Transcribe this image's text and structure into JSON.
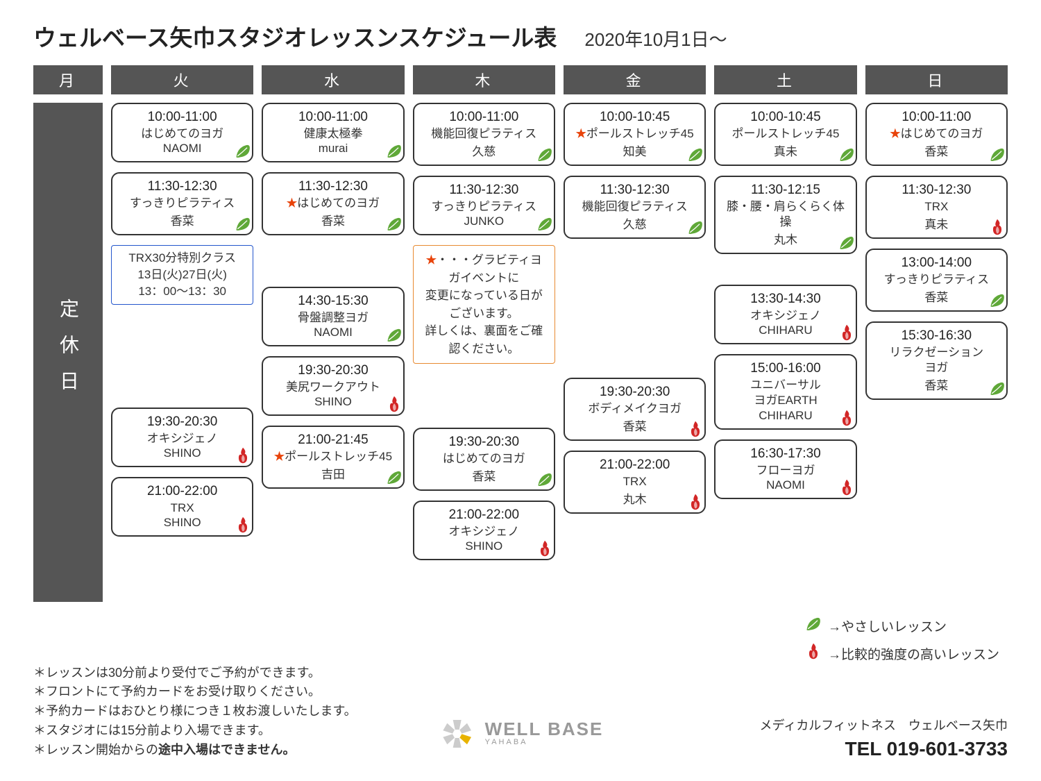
{
  "title": "ウェルベース矢巾スタジオレッスンスケジュール表",
  "date": "2020年10月1日～",
  "days": [
    "月",
    "火",
    "水",
    "木",
    "金",
    "土",
    "日"
  ],
  "closed": "定休日",
  "colors": {
    "header_bg": "#555555",
    "leaf": "#5fa838",
    "flame": "#d22626",
    "star": "#e8430a"
  },
  "tue": [
    {
      "time": "10:00-11:00",
      "name": "はじめてのヨガ",
      "instr": "NAOMI",
      "icon": "leaf"
    },
    {
      "time": "11:30-12:30",
      "name": "すっきりピラティス",
      "instr": "香菜",
      "icon": "leaf"
    },
    {
      "special": "TRX30分特別クラス\n13日(火)27日(火)\n13：00～13：30"
    },
    {
      "spacer": 120
    },
    {
      "time": "19:30-20:30",
      "name": "オキシジェノ",
      "instr": "SHINO",
      "icon": "flame"
    },
    {
      "time": "21:00-22:00",
      "name": "TRX",
      "instr": "SHINO",
      "icon": "flame"
    }
  ],
  "wed": [
    {
      "time": "10:00-11:00",
      "name": "健康太極拳",
      "instr": "murai",
      "icon": "leaf"
    },
    {
      "time": "11:30-12:30",
      "name": "はじめてのヨガ",
      "instr": "香菜",
      "star": true,
      "icon": "leaf"
    },
    {
      "spacer": 46
    },
    {
      "time": "14:30-15:30",
      "name": "骨盤調整ヨガ",
      "instr": "NAOMI",
      "icon": "leaf"
    },
    {
      "time": "19:30-20:30",
      "name": "美尻ワークアウト",
      "instr": "SHINO",
      "icon": "flame"
    },
    {
      "time": "21:00-21:45",
      "name": "ポールストレッチ45",
      "instr": "吉田",
      "star": true,
      "icon": "leaf"
    }
  ],
  "thu": [
    {
      "time": "10:00-11:00",
      "name": "機能回復ピラティス",
      "instr": "久慈",
      "icon": "leaf"
    },
    {
      "time": "11:30-12:30",
      "name": "すっきりピラティス",
      "instr": "JUNKO",
      "icon": "leaf"
    },
    {
      "note": "★・・・グラビティヨガイベントに\n変更になっている日がございます。\n詳しくは、裏面をご確認ください。"
    },
    {
      "spacer": 64
    },
    {
      "time": "19:30-20:30",
      "name": "はじめてのヨガ",
      "instr": "香菜",
      "icon": "leaf"
    },
    {
      "time": "21:00-22:00",
      "name": "オキシジェノ",
      "instr": "SHINO",
      "icon": "flame"
    }
  ],
  "fri": [
    {
      "time": "10:00-10:45",
      "name": "ポールストレッチ45",
      "instr": "知美",
      "star": true,
      "icon": "leaf"
    },
    {
      "time": "11:30-12:30",
      "name": "機能回復ピラティス",
      "instr": "久慈",
      "icon": "leaf"
    },
    {
      "spacer": 172
    },
    {
      "time": "19:30-20:30",
      "name": "ボディメイクヨガ",
      "instr": "香菜",
      "icon": "flame"
    },
    {
      "time": "21:00-22:00",
      "name": "TRX",
      "instr": "丸木",
      "icon": "flame"
    }
  ],
  "sat": [
    {
      "time": "10:00-10:45",
      "name": "ポールストレッチ45",
      "instr": "真未",
      "icon": "leaf"
    },
    {
      "time": "11:30-12:15",
      "name": "膝・腰・肩らくらく体操",
      "instr": "丸木",
      "icon": "leaf"
    },
    {
      "spacer": 16
    },
    {
      "time": "13:30-14:30",
      "name": "オキシジェノ",
      "instr": "CHIHARU",
      "icon": "flame"
    },
    {
      "time": "15:00-16:00",
      "name": "ユニバーサル\nヨガEARTH",
      "instr": "CHIHARU",
      "icon": "flame"
    },
    {
      "time": "16:30-17:30",
      "name": "フローヨガ",
      "instr": "NAOMI",
      "icon": "flame"
    }
  ],
  "sun": [
    {
      "time": "10:00-11:00",
      "name": "はじめてのヨガ",
      "instr": "香菜",
      "star": true,
      "icon": "leaf"
    },
    {
      "time": "11:30-12:30",
      "name": "TRX",
      "instr": "真未",
      "icon": "flame"
    },
    {
      "time": "13:00-14:00",
      "name": "すっきりピラティス",
      "instr": "香菜",
      "icon": "leaf"
    },
    {
      "time": "15:30-16:30",
      "name": "リラクゼーション\nヨガ",
      "instr": "香菜",
      "icon": "leaf"
    }
  ],
  "legend": {
    "leaf": "→やさしいレッスン",
    "flame": "→比較的強度の高いレッスン"
  },
  "notes": [
    "＊レッスンは30分前より受付でご予約ができます。",
    "＊フロントにて予約カードをお受け取りください。",
    "＊予約カードはおひとり様につき１枚お渡しいたします。",
    "＊スタジオには15分前より入場できます。",
    "＊レッスン開始からの途中入場はできません。"
  ],
  "notes_bold": "途中入場はできません。",
  "logo": {
    "txt": "WELL BASE",
    "sub": "YAHABA"
  },
  "contact": {
    "name": "メディカルフィットネス　ウェルベース矢巾",
    "tel": "TEL 019-601-3733"
  }
}
